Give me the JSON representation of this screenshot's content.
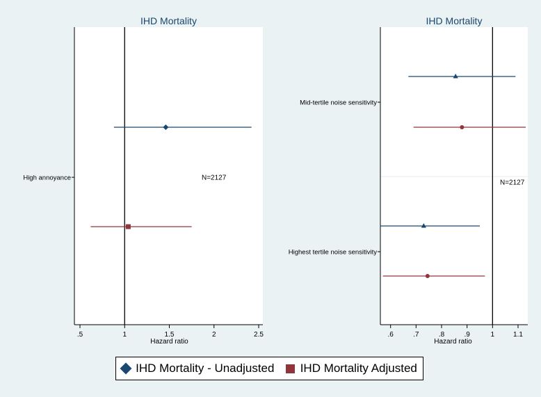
{
  "chart_data": [
    {
      "type": "forest",
      "title": "IHD Mortality",
      "xlabel": "Hazard ratio",
      "xlim": [
        0.5,
        2.5
      ],
      "xticks": [
        ".5",
        "1",
        "1.5",
        "2",
        "2.5"
      ],
      "xtick_values": [
        0.5,
        1,
        1.5,
        2,
        2.5
      ],
      "reference_line": 1,
      "category_labels": [
        "High annoyance"
      ],
      "annotation": "N=2127",
      "rows": [
        {
          "series": "unadjusted",
          "estimate": 1.46,
          "ci_low": 0.88,
          "ci_high": 2.42
        },
        {
          "series": "adjusted",
          "estimate": 1.04,
          "ci_low": 0.62,
          "ci_high": 1.75
        }
      ]
    },
    {
      "type": "forest",
      "title": "IHD Mortality",
      "xlabel": "Hazard ratio",
      "xlim": [
        0.56,
        1.13
      ],
      "xticks": [
        ".6",
        ".7",
        ".8",
        ".9",
        "1",
        "1.1"
      ],
      "xtick_values": [
        0.6,
        0.7,
        0.8,
        0.9,
        1.0,
        1.1
      ],
      "reference_line": 1,
      "category_labels": [
        "Mid-tertile noise sensitivity",
        "Highest tertile noise sensitivity"
      ],
      "annotation": "N=2127",
      "rows": [
        {
          "series": "unadjusted",
          "estimate": 0.855,
          "ci_low": 0.67,
          "ci_high": 1.09
        },
        {
          "series": "adjusted",
          "estimate": 0.88,
          "ci_low": 0.69,
          "ci_high": 1.13
        },
        {
          "series": "unadjusted",
          "estimate": 0.73,
          "ci_low": 0.56,
          "ci_high": 0.95
        },
        {
          "series": "adjusted",
          "estimate": 0.745,
          "ci_low": 0.57,
          "ci_high": 0.97
        }
      ]
    }
  ],
  "legend": {
    "unadjusted_label": "IHD Mortality - Unadjusted",
    "adjusted_label": "IHD Mortality Adjusted"
  },
  "colors": {
    "unadjusted": "#1a476f",
    "adjusted": "#90353b",
    "background": "#eaf2f3",
    "plot_area": "#ffffff"
  }
}
